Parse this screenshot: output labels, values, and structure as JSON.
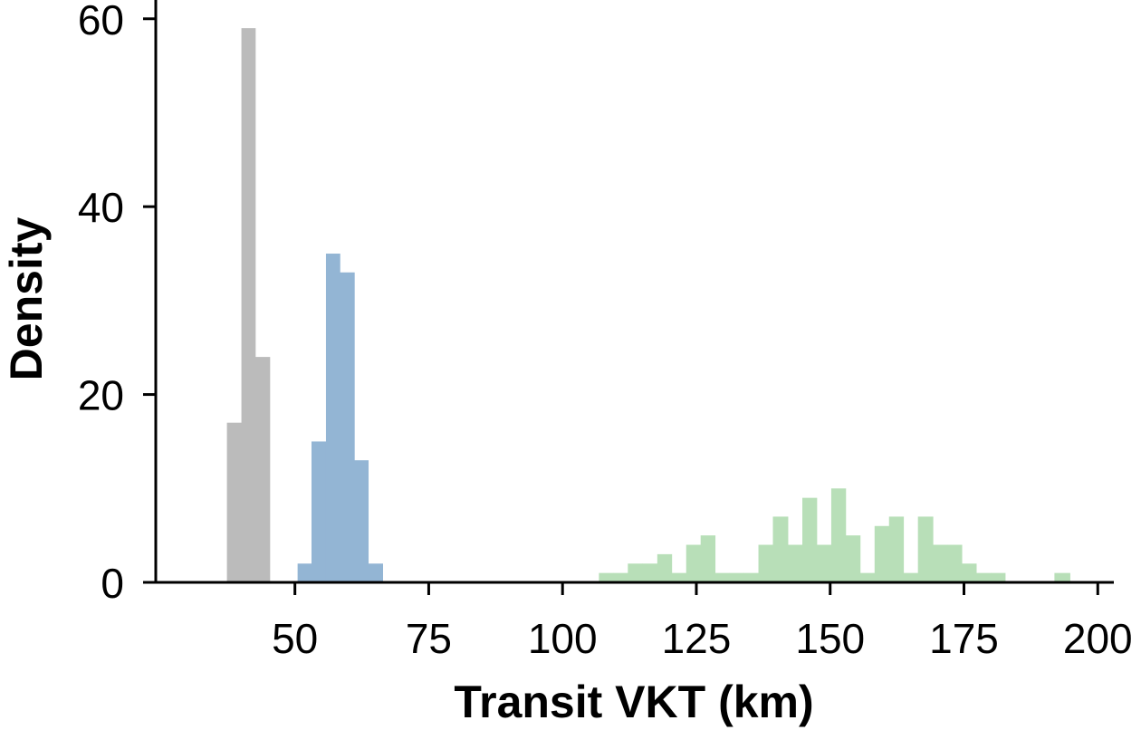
{
  "chart_data": {
    "type": "histogram",
    "xlabel": "Transit VKT (km)",
    "ylabel": "Density",
    "xlim": [
      24,
      203
    ],
    "ylim": [
      0,
      62
    ],
    "x_ticks": [
      50,
      75,
      100,
      125,
      150,
      175,
      200
    ],
    "y_ticks": [
      0,
      20,
      40,
      60
    ],
    "x_tick_labels": [
      "50",
      "75",
      "100",
      "125",
      "150",
      "175",
      "200"
    ],
    "y_tick_labels": [
      "0",
      "20",
      "40",
      "60"
    ],
    "grid": false,
    "legend": false,
    "series": [
      {
        "color": "#bbbbbb",
        "bins": [
          {
            "x0": 37.3,
            "x1": 40.0,
            "y": 17
          },
          {
            "x0": 40.0,
            "x1": 42.6,
            "y": 59
          },
          {
            "x0": 42.6,
            "x1": 45.3,
            "y": 24
          }
        ]
      },
      {
        "color": "#93b5d4",
        "bins": [
          {
            "x0": 50.5,
            "x1": 53.1,
            "y": 2
          },
          {
            "x0": 53.1,
            "x1": 55.8,
            "y": 15
          },
          {
            "x0": 55.8,
            "x1": 58.4,
            "y": 35
          },
          {
            "x0": 58.4,
            "x1": 61.1,
            "y": 33
          },
          {
            "x0": 61.1,
            "x1": 63.7,
            "y": 13
          },
          {
            "x0": 63.7,
            "x1": 66.4,
            "y": 2
          }
        ]
      },
      {
        "color": "#b8dfb8",
        "bins": [
          {
            "x0": 106.8,
            "x1": 109.5,
            "y": 1
          },
          {
            "x0": 109.5,
            "x1": 112.2,
            "y": 1
          },
          {
            "x0": 112.2,
            "x1": 114.9,
            "y": 2
          },
          {
            "x0": 114.9,
            "x1": 117.7,
            "y": 2
          },
          {
            "x0": 117.7,
            "x1": 120.4,
            "y": 3
          },
          {
            "x0": 120.4,
            "x1": 123.1,
            "y": 1
          },
          {
            "x0": 123.1,
            "x1": 125.8,
            "y": 4
          },
          {
            "x0": 125.8,
            "x1": 128.5,
            "y": 5
          },
          {
            "x0": 128.5,
            "x1": 131.2,
            "y": 1
          },
          {
            "x0": 131.2,
            "x1": 133.9,
            "y": 1
          },
          {
            "x0": 133.9,
            "x1": 136.6,
            "y": 1
          },
          {
            "x0": 136.6,
            "x1": 139.3,
            "y": 4
          },
          {
            "x0": 139.3,
            "x1": 142.1,
            "y": 7
          },
          {
            "x0": 142.1,
            "x1": 144.8,
            "y": 4
          },
          {
            "x0": 144.8,
            "x1": 147.5,
            "y": 9
          },
          {
            "x0": 147.5,
            "x1": 150.2,
            "y": 4
          },
          {
            "x0": 150.2,
            "x1": 152.9,
            "y": 10
          },
          {
            "x0": 152.9,
            "x1": 155.6,
            "y": 5
          },
          {
            "x0": 155.6,
            "x1": 158.3,
            "y": 1
          },
          {
            "x0": 158.3,
            "x1": 161.0,
            "y": 6
          },
          {
            "x0": 161.0,
            "x1": 163.7,
            "y": 7
          },
          {
            "x0": 163.7,
            "x1": 166.4,
            "y": 1
          },
          {
            "x0": 166.4,
            "x1": 169.2,
            "y": 7
          },
          {
            "x0": 169.2,
            "x1": 171.9,
            "y": 4
          },
          {
            "x0": 171.9,
            "x1": 174.6,
            "y": 4
          },
          {
            "x0": 174.6,
            "x1": 177.3,
            "y": 2
          },
          {
            "x0": 177.3,
            "x1": 180.0,
            "y": 1
          },
          {
            "x0": 180.0,
            "x1": 182.7,
            "y": 1
          },
          {
            "x0": 191.9,
            "x1": 194.8,
            "y": 1
          }
        ]
      }
    ]
  }
}
